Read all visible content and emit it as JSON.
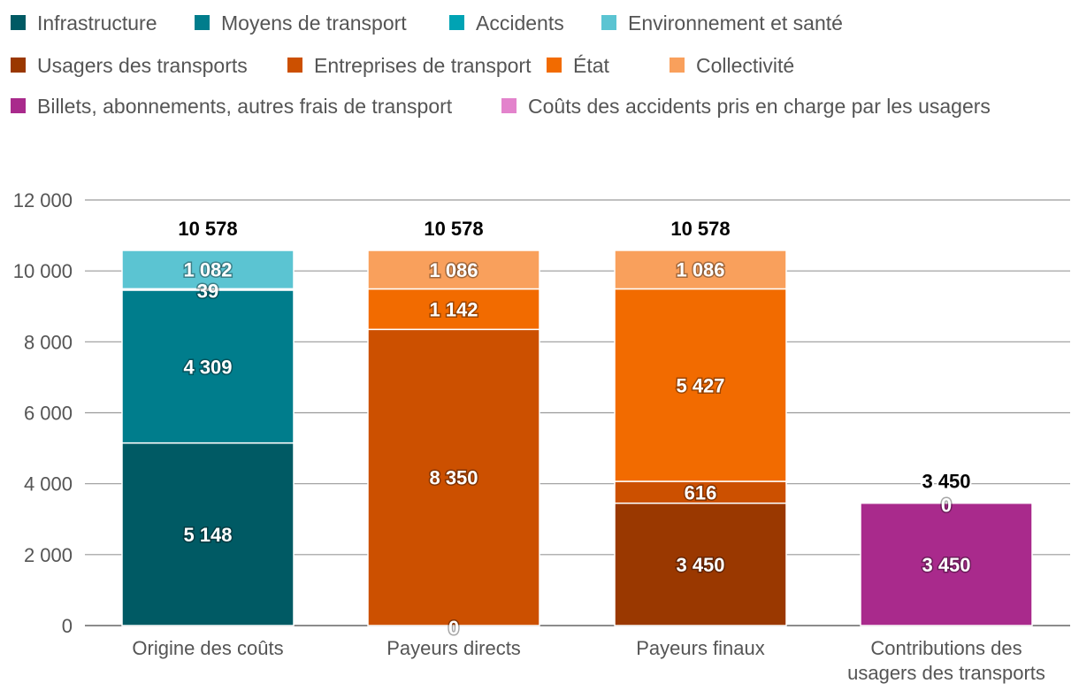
{
  "chart_data": {
    "type": "bar",
    "stacked": true,
    "title": "",
    "xlabel": "",
    "ylabel": "",
    "ylim": [
      0,
      12000
    ],
    "y_ticks": [
      0,
      2000,
      4000,
      6000,
      8000,
      10000,
      12000
    ],
    "y_tick_labels": [
      "0",
      "2 000",
      "4 000",
      "6 000",
      "8 000",
      "10 000",
      "12 000"
    ],
    "grid": true,
    "legend_position": "top",
    "categories": [
      [
        "Origine des coûts"
      ],
      [
        "Payeurs directs"
      ],
      [
        "Payeurs finaux"
      ],
      [
        "Contributions des",
        "usagers des transports"
      ]
    ],
    "series": [
      {
        "name": "Infrastructure",
        "color": "#005a64",
        "values": [
          5148,
          null,
          null,
          null
        ],
        "labels": [
          "5 148",
          null,
          null,
          null
        ]
      },
      {
        "name": "Moyens de transport",
        "color": "#007d8c",
        "values": [
          4309,
          null,
          null,
          null
        ],
        "labels": [
          "4 309",
          null,
          null,
          null
        ]
      },
      {
        "name": "Accidents",
        "color": "#00a3b4",
        "values": [
          39,
          null,
          null,
          null
        ],
        "labels": [
          "39",
          null,
          null,
          null
        ]
      },
      {
        "name": "Environnement et santé",
        "color": "#5bc4d2",
        "values": [
          1082,
          null,
          null,
          null
        ],
        "labels": [
          "1 082",
          null,
          null,
          null
        ]
      },
      {
        "name": "Usagers des transports",
        "color": "#9a3800",
        "values": [
          null,
          0,
          3450,
          null
        ],
        "labels": [
          null,
          "0",
          "3 450",
          null
        ]
      },
      {
        "name": "Entreprises de transport",
        "color": "#cc5000",
        "values": [
          null,
          8350,
          616,
          null
        ],
        "labels": [
          null,
          "8 350",
          "616",
          null
        ]
      },
      {
        "name": "État",
        "color": "#f26b00",
        "values": [
          null,
          1142,
          5427,
          null
        ],
        "labels": [
          null,
          "1 142",
          "5 427",
          null
        ]
      },
      {
        "name": "Collectivité",
        "color": "#f9a05c",
        "values": [
          null,
          1086,
          1086,
          null
        ],
        "labels": [
          null,
          "1 086",
          "1 086",
          null
        ]
      },
      {
        "name": "Billets, abonnements, autres frais de transport",
        "color": "#a92a8c",
        "values": [
          null,
          null,
          null,
          3450
        ],
        "labels": [
          null,
          null,
          null,
          "3 450"
        ]
      },
      {
        "name": "Coûts des accidents pris en charge par les usagers",
        "color": "#e383cc",
        "values": [
          null,
          null,
          null,
          0
        ],
        "labels": [
          null,
          null,
          null,
          "0"
        ]
      }
    ],
    "totals": [
      10578,
      10578,
      10578,
      3450
    ],
    "total_labels": [
      "10 578",
      "10 578",
      "10 578",
      "3 450"
    ]
  }
}
